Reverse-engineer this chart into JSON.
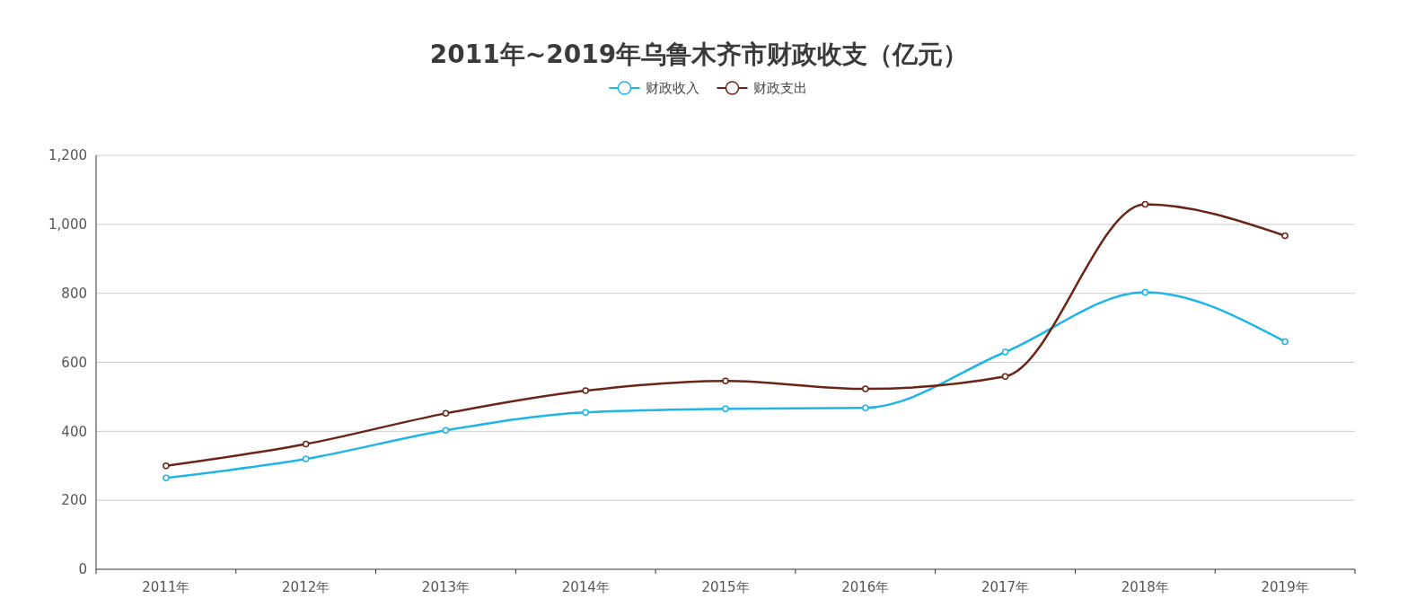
{
  "chart_data": {
    "type": "line",
    "title": "2011年~2019年乌鲁木齐市财政收支（亿元）",
    "categories": [
      "2011年",
      "2012年",
      "2013年",
      "2014年",
      "2015年",
      "2016年",
      "2017年",
      "2018年",
      "2019年"
    ],
    "series": [
      {
        "name": "财政收入",
        "color": "#1fb4e8",
        "values": [
          265,
          320,
          403,
          455,
          465,
          468,
          630,
          803,
          660
        ]
      },
      {
        "name": "财政支出",
        "color": "#6b2515",
        "values": [
          300,
          363,
          452,
          518,
          546,
          523,
          559,
          1058,
          967
        ]
      }
    ],
    "ylim": [
      0,
      1200
    ],
    "yticks": [
      0,
      200,
      400,
      600,
      800,
      {
        "value": 1000,
        "label": "1,000"
      },
      {
        "value": 1200,
        "label": "1,200"
      }
    ],
    "grid": "y",
    "legend": "top",
    "marker": "circle"
  }
}
